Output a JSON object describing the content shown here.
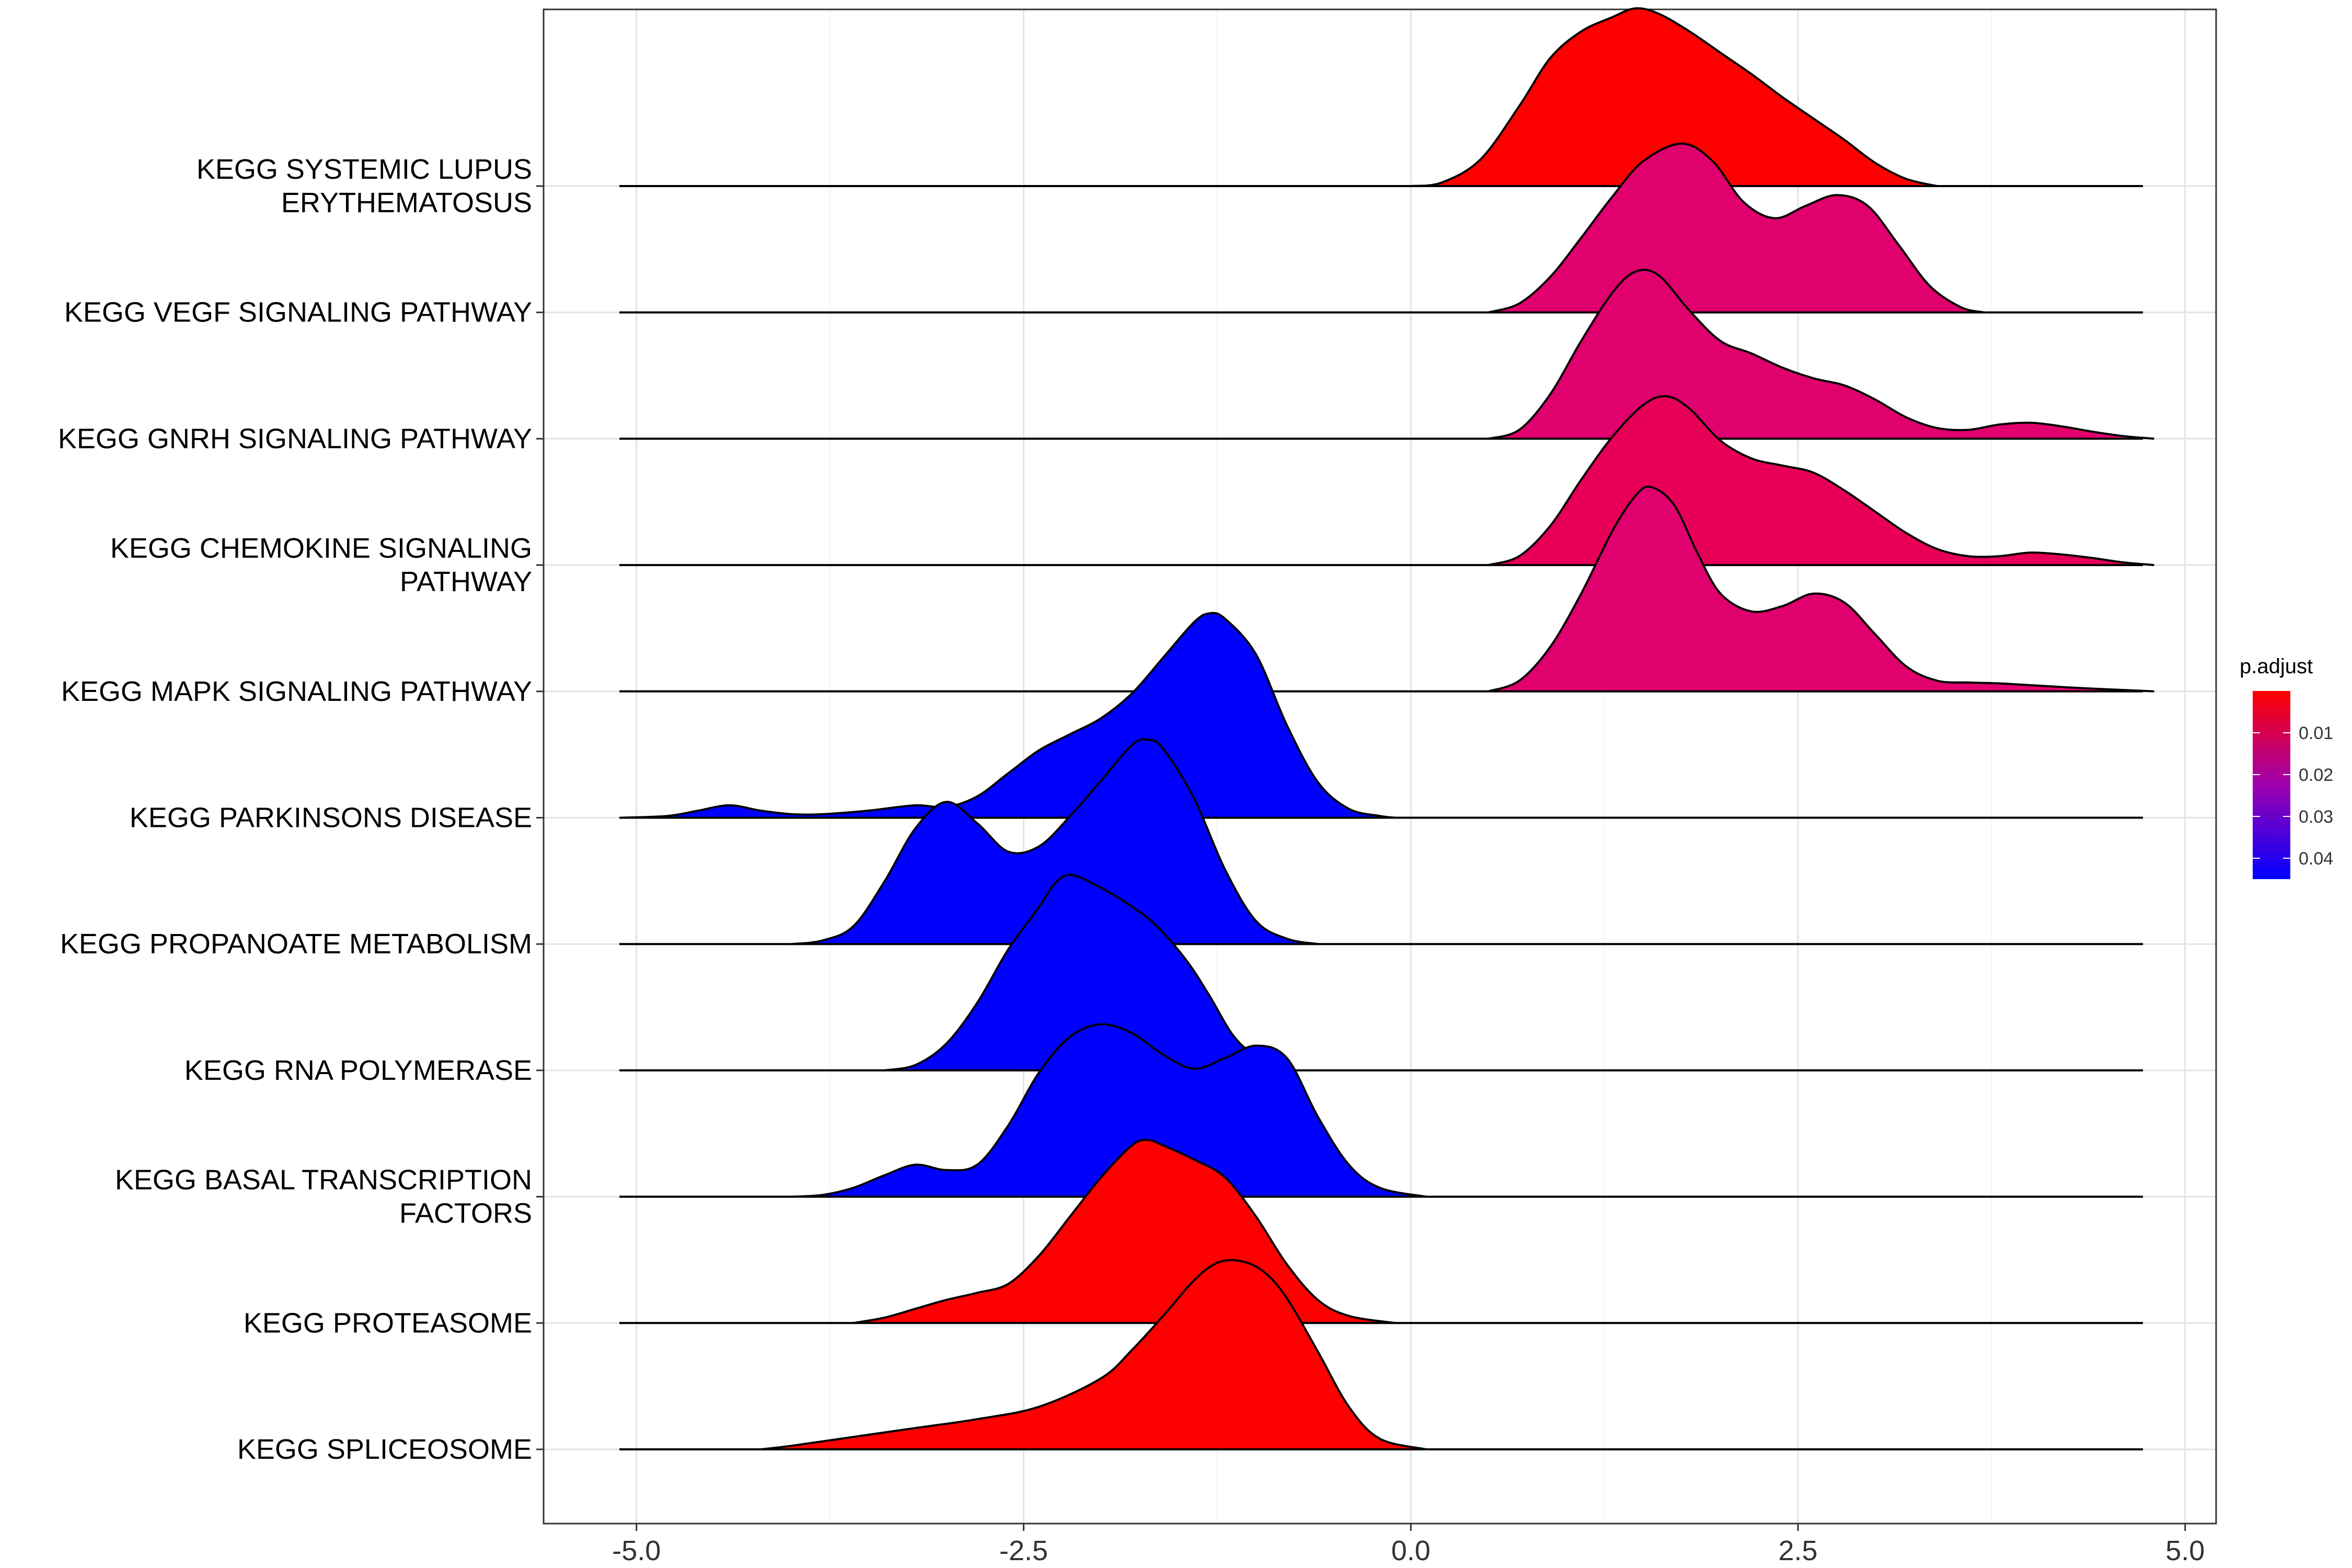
{
  "chart_data": {
    "type": "ridgeline",
    "xlim": [
      -5.6,
      5.2
    ],
    "x_ticks": [
      "-5.0",
      "-2.5",
      "0.0",
      "2.5",
      "5.0"
    ],
    "x_tick_values": [
      -5.0,
      -2.5,
      0.0,
      2.5,
      5.0
    ],
    "grid": true,
    "legend_position": "right",
    "legend": {
      "title": "p.adjust",
      "ticks": [
        "0.01",
        "0.02",
        "0.03",
        "0.04"
      ],
      "tick_values": [
        0.01,
        0.02,
        0.03,
        0.04
      ],
      "range": [
        0.0,
        0.045
      ],
      "color_low_p": "#ff0000",
      "color_high_p": "#0000ff"
    },
    "series": [
      {
        "label": [
          "KEGG SYSTEMIC LUPUS",
          "ERYTHEMATOSUS"
        ],
        "p_adjust": 0.0005,
        "color": "#ff0000",
        "x_range": [
          0.0,
          3.4
        ],
        "density": [
          [
            0.0,
            0
          ],
          [
            0.2,
            0.02
          ],
          [
            0.45,
            0.15
          ],
          [
            0.7,
            0.45
          ],
          [
            0.9,
            0.72
          ],
          [
            1.1,
            0.87
          ],
          [
            1.3,
            0.95
          ],
          [
            1.45,
            1.0
          ],
          [
            1.6,
            0.97
          ],
          [
            1.8,
            0.87
          ],
          [
            2.0,
            0.75
          ],
          [
            2.2,
            0.63
          ],
          [
            2.4,
            0.5
          ],
          [
            2.6,
            0.38
          ],
          [
            2.8,
            0.26
          ],
          [
            3.0,
            0.13
          ],
          [
            3.2,
            0.04
          ],
          [
            3.4,
            0
          ]
        ]
      },
      {
        "label": [
          "KEGG VEGF SIGNALING PATHWAY"
        ],
        "p_adjust": 0.02,
        "color": "#e0006e",
        "x_range": [
          0.5,
          3.7
        ],
        "density": [
          [
            0.5,
            0
          ],
          [
            0.7,
            0.05
          ],
          [
            0.9,
            0.2
          ],
          [
            1.1,
            0.42
          ],
          [
            1.3,
            0.65
          ],
          [
            1.5,
            0.85
          ],
          [
            1.75,
            0.95
          ],
          [
            1.95,
            0.85
          ],
          [
            2.15,
            0.62
          ],
          [
            2.35,
            0.53
          ],
          [
            2.55,
            0.6
          ],
          [
            2.75,
            0.66
          ],
          [
            2.95,
            0.6
          ],
          [
            3.15,
            0.38
          ],
          [
            3.35,
            0.15
          ],
          [
            3.55,
            0.03
          ],
          [
            3.7,
            0
          ]
        ]
      },
      {
        "label": [
          "KEGG GNRH SIGNALING PATHWAY"
        ],
        "p_adjust": 0.02,
        "color": "#e0006e",
        "x_range": [
          0.5,
          4.8
        ],
        "density": [
          [
            0.5,
            0
          ],
          [
            0.7,
            0.05
          ],
          [
            0.9,
            0.25
          ],
          [
            1.1,
            0.55
          ],
          [
            1.3,
            0.82
          ],
          [
            1.45,
            0.94
          ],
          [
            1.6,
            0.92
          ],
          [
            1.8,
            0.72
          ],
          [
            2.0,
            0.55
          ],
          [
            2.2,
            0.48
          ],
          [
            2.4,
            0.4
          ],
          [
            2.6,
            0.34
          ],
          [
            2.8,
            0.3
          ],
          [
            3.0,
            0.22
          ],
          [
            3.2,
            0.12
          ],
          [
            3.4,
            0.06
          ],
          [
            3.6,
            0.05
          ],
          [
            3.8,
            0.08
          ],
          [
            4.0,
            0.09
          ],
          [
            4.2,
            0.07
          ],
          [
            4.4,
            0.04
          ],
          [
            4.6,
            0.015
          ],
          [
            4.8,
            0
          ]
        ]
      },
      {
        "label": [
          "KEGG CHEMOKINE SIGNALING",
          "PATHWAY"
        ],
        "p_adjust": 0.015,
        "color": "#e80058",
        "x_range": [
          0.5,
          4.8
        ],
        "density": [
          [
            0.5,
            0
          ],
          [
            0.7,
            0.05
          ],
          [
            0.9,
            0.22
          ],
          [
            1.1,
            0.48
          ],
          [
            1.3,
            0.72
          ],
          [
            1.5,
            0.9
          ],
          [
            1.65,
            0.95
          ],
          [
            1.8,
            0.88
          ],
          [
            2.0,
            0.7
          ],
          [
            2.2,
            0.6
          ],
          [
            2.4,
            0.56
          ],
          [
            2.6,
            0.52
          ],
          [
            2.8,
            0.42
          ],
          [
            3.0,
            0.3
          ],
          [
            3.2,
            0.18
          ],
          [
            3.4,
            0.09
          ],
          [
            3.6,
            0.05
          ],
          [
            3.8,
            0.05
          ],
          [
            4.0,
            0.07
          ],
          [
            4.2,
            0.06
          ],
          [
            4.4,
            0.04
          ],
          [
            4.6,
            0.015
          ],
          [
            4.8,
            0
          ]
        ]
      },
      {
        "label": [
          "KEGG MAPK SIGNALING PATHWAY"
        ],
        "p_adjust": 0.02,
        "color": "#e0006e",
        "x_range": [
          0.5,
          4.8
        ],
        "density": [
          [
            0.5,
            0
          ],
          [
            0.7,
            0.06
          ],
          [
            0.9,
            0.25
          ],
          [
            1.1,
            0.55
          ],
          [
            1.3,
            0.9
          ],
          [
            1.45,
            1.1
          ],
          [
            1.55,
            1.15
          ],
          [
            1.7,
            1.05
          ],
          [
            1.85,
            0.78
          ],
          [
            2.0,
            0.55
          ],
          [
            2.2,
            0.45
          ],
          [
            2.4,
            0.48
          ],
          [
            2.6,
            0.55
          ],
          [
            2.8,
            0.5
          ],
          [
            3.0,
            0.32
          ],
          [
            3.2,
            0.14
          ],
          [
            3.4,
            0.06
          ],
          [
            3.6,
            0.05
          ],
          [
            3.8,
            0.045
          ],
          [
            4.0,
            0.035
          ],
          [
            4.3,
            0.02
          ],
          [
            4.6,
            0.008
          ],
          [
            4.8,
            0
          ]
        ]
      },
      {
        "label": [
          "KEGG PARKINSONS DISEASE"
        ],
        "p_adjust": 0.045,
        "color": "#0000ff",
        "x_range": [
          -5.1,
          -0.1
        ],
        "density": [
          [
            -5.1,
            0
          ],
          [
            -4.8,
            0.01
          ],
          [
            -4.6,
            0.04
          ],
          [
            -4.4,
            0.07
          ],
          [
            -4.2,
            0.04
          ],
          [
            -4.0,
            0.02
          ],
          [
            -3.8,
            0.02
          ],
          [
            -3.5,
            0.04
          ],
          [
            -3.2,
            0.07
          ],
          [
            -3.0,
            0.06
          ],
          [
            -2.8,
            0.12
          ],
          [
            -2.6,
            0.25
          ],
          [
            -2.4,
            0.38
          ],
          [
            -2.2,
            0.47
          ],
          [
            -2.0,
            0.56
          ],
          [
            -1.8,
            0.7
          ],
          [
            -1.6,
            0.9
          ],
          [
            -1.4,
            1.1
          ],
          [
            -1.3,
            1.15
          ],
          [
            -1.2,
            1.12
          ],
          [
            -1.0,
            0.92
          ],
          [
            -0.8,
            0.52
          ],
          [
            -0.6,
            0.2
          ],
          [
            -0.4,
            0.05
          ],
          [
            -0.2,
            0.01
          ],
          [
            -0.1,
            0
          ]
        ]
      },
      {
        "label": [
          "KEGG PROPANOATE METABOLISM"
        ],
        "p_adjust": 0.045,
        "color": "#0000ff",
        "x_range": [
          -4.0,
          -0.6
        ],
        "density": [
          [
            -4.0,
            0
          ],
          [
            -3.8,
            0.02
          ],
          [
            -3.6,
            0.1
          ],
          [
            -3.4,
            0.35
          ],
          [
            -3.2,
            0.65
          ],
          [
            -3.0,
            0.8
          ],
          [
            -2.8,
            0.68
          ],
          [
            -2.6,
            0.52
          ],
          [
            -2.4,
            0.55
          ],
          [
            -2.2,
            0.72
          ],
          [
            -2.0,
            0.92
          ],
          [
            -1.8,
            1.12
          ],
          [
            -1.7,
            1.15
          ],
          [
            -1.6,
            1.1
          ],
          [
            -1.4,
            0.82
          ],
          [
            -1.2,
            0.42
          ],
          [
            -1.0,
            0.13
          ],
          [
            -0.8,
            0.03
          ],
          [
            -0.6,
            0
          ]
        ]
      },
      {
        "label": [
          "KEGG RNA POLYMERASE"
        ],
        "p_adjust": 0.045,
        "color": "#0000ff",
        "x_range": [
          -3.4,
          -0.9
        ],
        "density": [
          [
            -3.4,
            0
          ],
          [
            -3.2,
            0.03
          ],
          [
            -3.0,
            0.15
          ],
          [
            -2.8,
            0.38
          ],
          [
            -2.6,
            0.68
          ],
          [
            -2.4,
            0.92
          ],
          [
            -2.3,
            1.05
          ],
          [
            -2.2,
            1.1
          ],
          [
            -2.05,
            1.05
          ],
          [
            -1.85,
            0.95
          ],
          [
            -1.65,
            0.82
          ],
          [
            -1.45,
            0.62
          ],
          [
            -1.3,
            0.42
          ],
          [
            -1.15,
            0.2
          ],
          [
            -1.0,
            0.07
          ],
          [
            -0.9,
            0
          ]
        ]
      },
      {
        "label": [
          "KEGG BASAL TRANSCRIPTION",
          "FACTORS"
        ],
        "p_adjust": 0.045,
        "color": "#0000ff",
        "x_range": [
          -4.0,
          0.1
        ],
        "density": [
          [
            -4.0,
            0
          ],
          [
            -3.8,
            0.01
          ],
          [
            -3.6,
            0.05
          ],
          [
            -3.4,
            0.12
          ],
          [
            -3.2,
            0.18
          ],
          [
            -3.0,
            0.15
          ],
          [
            -2.8,
            0.18
          ],
          [
            -2.6,
            0.4
          ],
          [
            -2.4,
            0.7
          ],
          [
            -2.2,
            0.9
          ],
          [
            -2.0,
            0.97
          ],
          [
            -1.8,
            0.92
          ],
          [
            -1.6,
            0.8
          ],
          [
            -1.4,
            0.72
          ],
          [
            -1.2,
            0.78
          ],
          [
            -1.0,
            0.85
          ],
          [
            -0.8,
            0.78
          ],
          [
            -0.6,
            0.45
          ],
          [
            -0.4,
            0.18
          ],
          [
            -0.2,
            0.05
          ],
          [
            0.1,
            0
          ]
        ]
      },
      {
        "label": [
          "KEGG PROTEASOME"
        ],
        "p_adjust": 0.0005,
        "color": "#ff0000",
        "x_range": [
          -3.6,
          -0.1
        ],
        "density": [
          [
            -3.6,
            0
          ],
          [
            -3.4,
            0.03
          ],
          [
            -3.2,
            0.08
          ],
          [
            -3.0,
            0.13
          ],
          [
            -2.8,
            0.17
          ],
          [
            -2.6,
            0.22
          ],
          [
            -2.4,
            0.38
          ],
          [
            -2.2,
            0.6
          ],
          [
            -2.0,
            0.82
          ],
          [
            -1.8,
            1.0
          ],
          [
            -1.7,
            1.03
          ],
          [
            -1.6,
            1.0
          ],
          [
            -1.4,
            0.92
          ],
          [
            -1.2,
            0.82
          ],
          [
            -1.0,
            0.6
          ],
          [
            -0.8,
            0.33
          ],
          [
            -0.6,
            0.13
          ],
          [
            -0.4,
            0.04
          ],
          [
            -0.1,
            0
          ]
        ]
      },
      {
        "label": [
          "KEGG SPLICEOSOME"
        ],
        "p_adjust": 0.0005,
        "color": "#ff0000",
        "x_range": [
          -4.2,
          0.1
        ],
        "density": [
          [
            -4.2,
            0
          ],
          [
            -4.0,
            0.02
          ],
          [
            -3.6,
            0.07
          ],
          [
            -3.2,
            0.12
          ],
          [
            -2.8,
            0.17
          ],
          [
            -2.4,
            0.24
          ],
          [
            -2.0,
            0.4
          ],
          [
            -1.8,
            0.56
          ],
          [
            -1.6,
            0.75
          ],
          [
            -1.4,
            0.95
          ],
          [
            -1.25,
            1.05
          ],
          [
            -1.1,
            1.06
          ],
          [
            -0.95,
            1.0
          ],
          [
            -0.8,
            0.85
          ],
          [
            -0.6,
            0.55
          ],
          [
            -0.4,
            0.24
          ],
          [
            -0.2,
            0.06
          ],
          [
            0.1,
            0
          ]
        ]
      }
    ]
  }
}
